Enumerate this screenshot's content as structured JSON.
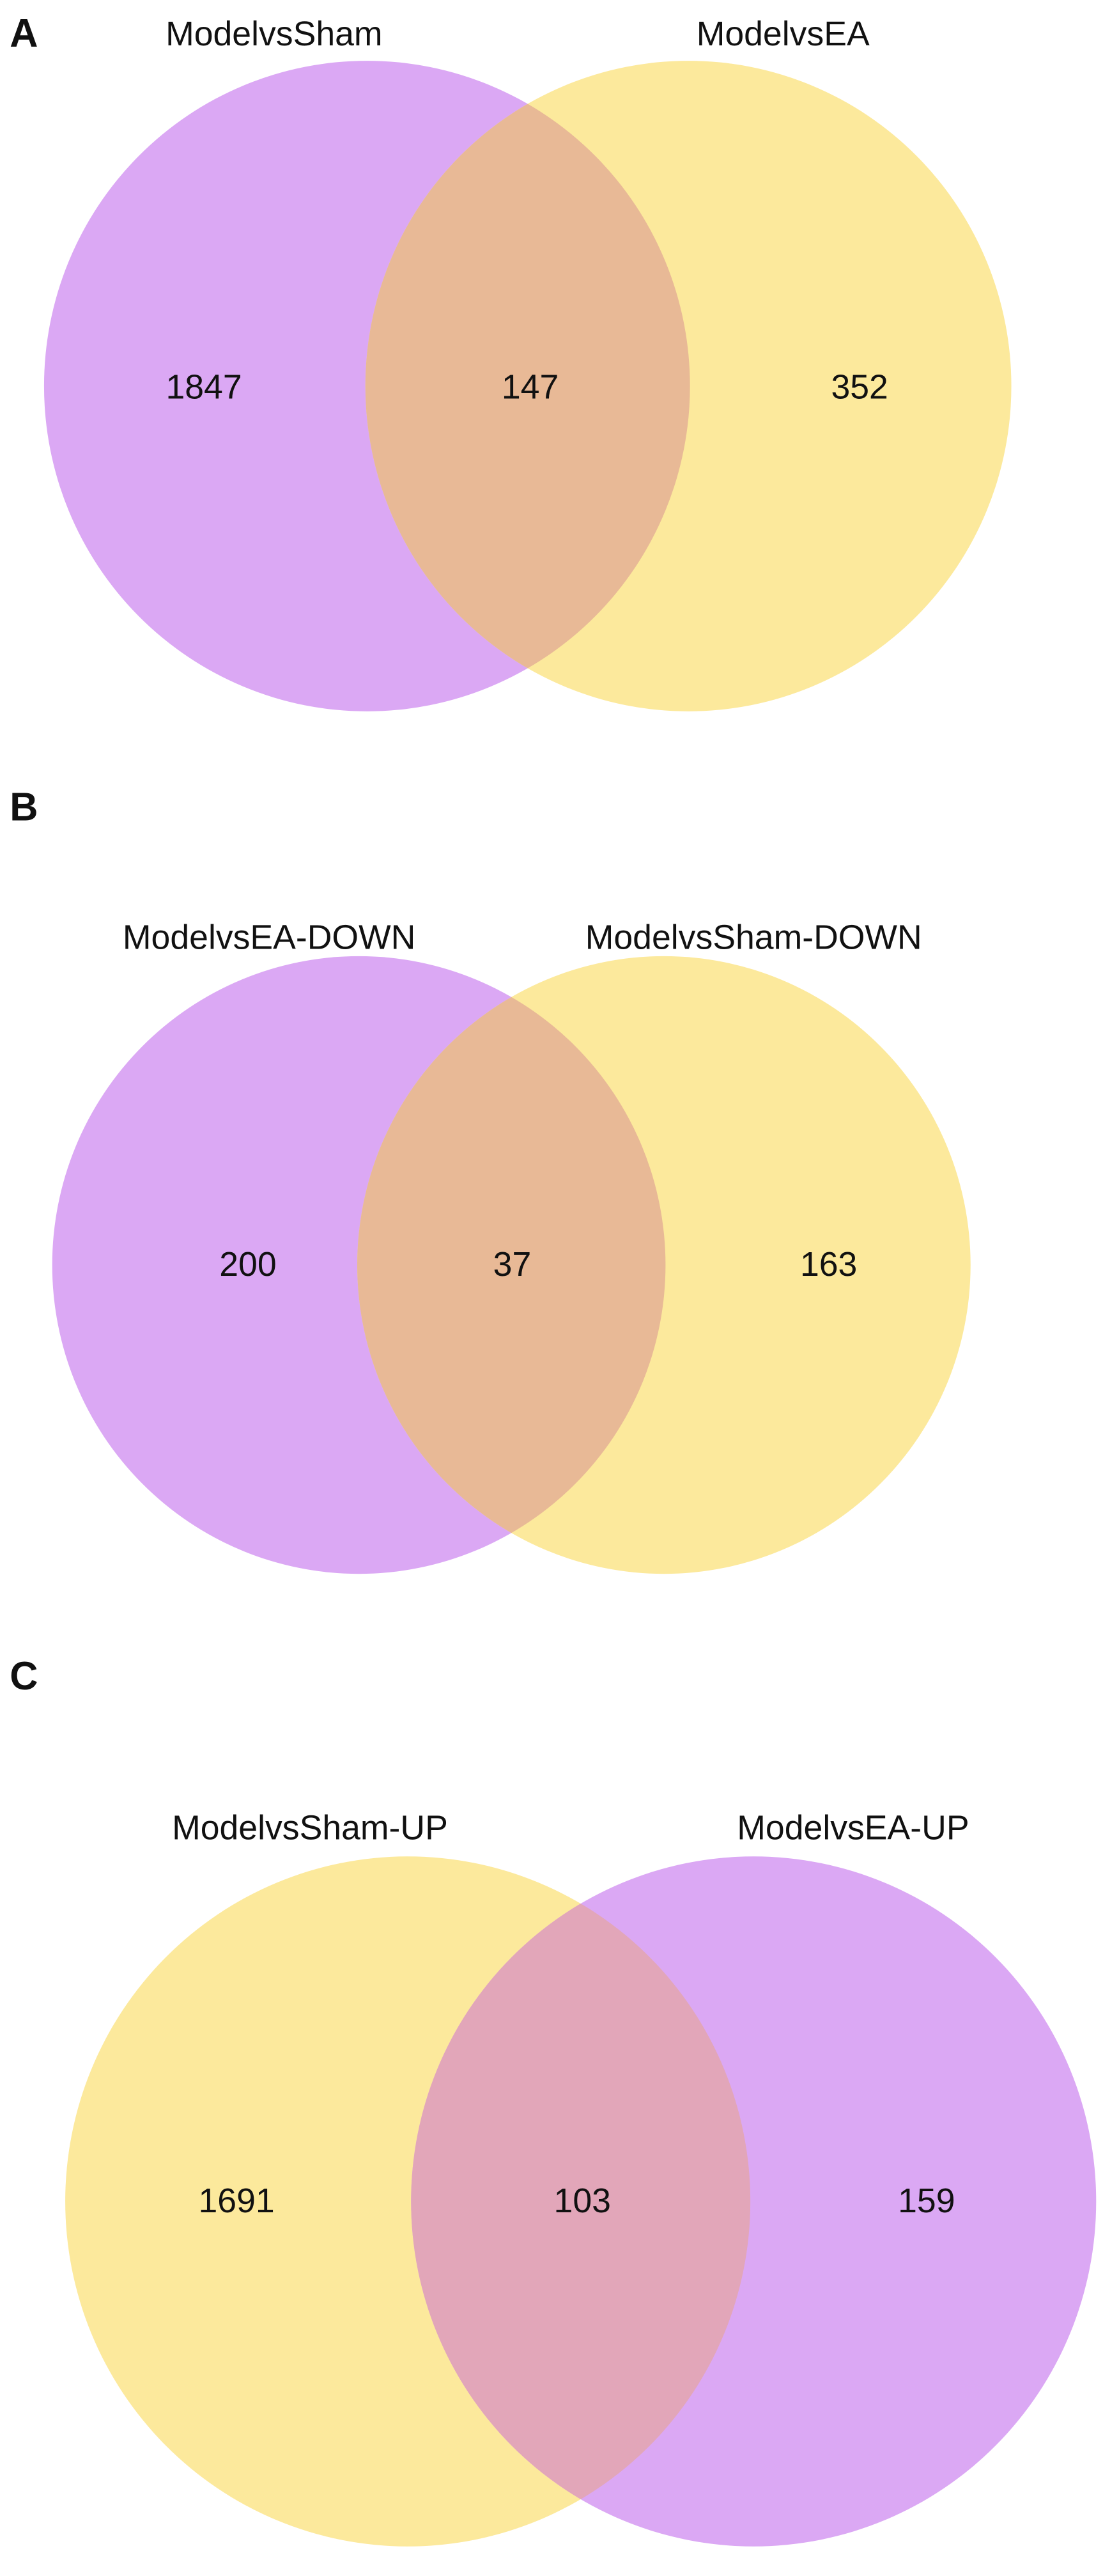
{
  "chart_data": [
    {
      "type": "venn",
      "panel": "A",
      "sets": [
        {
          "name": "ModelvsSham",
          "color": "#dba8f4"
        },
        {
          "name": "ModelvsEA",
          "color": "#fce99c"
        }
      ],
      "overlap_color": "#e8b996",
      "values": [
        1847,
        147,
        352
      ]
    },
    {
      "type": "venn",
      "panel": "B",
      "sets": [
        {
          "name": "ModelvsEA-DOWN",
          "color": "#dba8f4"
        },
        {
          "name": "ModelvsSham-DOWN",
          "color": "#fce99c"
        }
      ],
      "overlap_color": "#e8b996",
      "values": [
        200,
        37,
        163
      ]
    },
    {
      "type": "venn",
      "panel": "C",
      "sets": [
        {
          "name": "ModelvsSham-UP",
          "color": "#fce99c"
        },
        {
          "name": "ModelvsEA-UP",
          "color": "#dba8f4"
        }
      ],
      "overlap_color": "#e2a6b9",
      "values": [
        1691,
        103,
        159
      ]
    }
  ]
}
